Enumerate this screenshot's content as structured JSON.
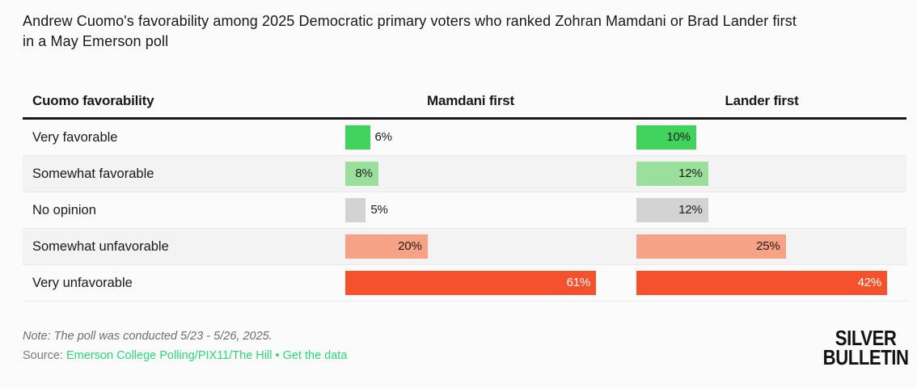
{
  "title_lines": [
    "Andrew Cuomo's favorability among 2025 Democratic primary voters who ranked Zohran Mamdani or Brad Lander first",
    "in a May Emerson poll"
  ],
  "table": {
    "header": {
      "label": "Cuomo favorability",
      "col1": "Mamdani first",
      "col2": "Lander first"
    },
    "rows": [
      {
        "label": "Very favorable",
        "mamdani": "6%",
        "lander": "10%",
        "mamdani_value": 6,
        "lander_value": 10,
        "color": "#40d35e",
        "text": "#1c1c1c"
      },
      {
        "label": "Somewhat favorable",
        "mamdani": "8%",
        "lander": "12%",
        "mamdani_value": 8,
        "lander_value": 12,
        "color": "#9adf9c",
        "text": "#1c1c1c"
      },
      {
        "label": "No opinion",
        "mamdani": "5%",
        "lander": "12%",
        "mamdani_value": 5,
        "lander_value": 12,
        "color": "#d3d3d3",
        "text": "#1c1c1c"
      },
      {
        "label": "Somewhat unfavorable",
        "mamdani": "20%",
        "lander": "25%",
        "mamdani_value": 20,
        "lander_value": 25,
        "color": "#f6a286",
        "text": "#241712"
      },
      {
        "label": "Very unfavorable",
        "mamdani": "61%",
        "lander": "42%",
        "mamdani_value": 61,
        "lander_value": 42,
        "color": "#f4512c",
        "text": "#ffffff"
      }
    ],
    "column_max": {
      "mamdani": 61,
      "lander": 42
    }
  },
  "chart_data": {
    "type": "bar",
    "title": "Andrew Cuomo's favorability among 2025 Democratic primary voters who ranked Zohran Mamdani or Brad Lander first in a May Emerson poll",
    "categories": [
      "Very favorable",
      "Somewhat favorable",
      "No opinion",
      "Somewhat unfavorable",
      "Very unfavorable"
    ],
    "series": [
      {
        "name": "Mamdani first",
        "values": [
          6,
          8,
          5,
          20,
          61
        ]
      },
      {
        "name": "Lander first",
        "values": [
          10,
          12,
          12,
          25,
          42
        ]
      }
    ],
    "unit": "%",
    "layout_hint": "horizontal bars in two table columns; each column scaled so its max value fills the track",
    "note": "Note: The poll was conducted 5/23 - 5/26, 2025."
  },
  "footer": {
    "note": "Note: The poll was conducted 5/23 - 5/26, 2025.",
    "source_label": "Source:",
    "source_link": "Emerson College Polling/PIX11/The Hill",
    "separator": "•",
    "data_link": "Get the data"
  },
  "logo": {
    "line1": "SILVER",
    "line2": "BULLETIN"
  },
  "colors": {
    "page_bg": "#fbfbfb",
    "stripe": "#f3f3f3",
    "header_rule": "#1a1a1a",
    "link_green": "#2ad97c",
    "bar_very_favorable": "#40d35e",
    "bar_somewhat_favorable": "#9adf9c",
    "bar_no_opinion": "#d3d3d3",
    "bar_somewhat_unfavorable": "#f6a286",
    "bar_very_unfavorable": "#f4512c"
  }
}
